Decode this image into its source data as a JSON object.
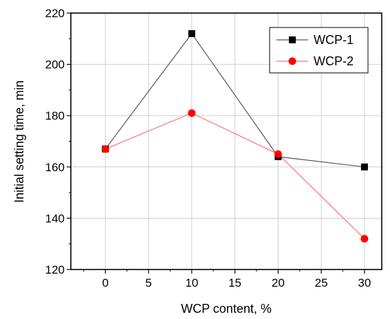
{
  "chart_data": {
    "type": "line",
    "title": "",
    "xlabel": "WCP content, %",
    "ylabel": "Initial setting time, min",
    "xlim": [
      -4,
      32
    ],
    "ylim": [
      120,
      220
    ],
    "xticks": [
      0,
      5,
      10,
      15,
      20,
      25,
      30
    ],
    "yticks": [
      120,
      140,
      160,
      180,
      200,
      220
    ],
    "grid": true,
    "legend_position": "top-right",
    "series": [
      {
        "name": "WCP-1",
        "color": "#000000",
        "marker": "square",
        "line_color": "#555555",
        "x": [
          0,
          10,
          20,
          30
        ],
        "y": [
          167,
          212,
          164,
          160
        ]
      },
      {
        "name": "WCP-2",
        "color": "#ff0000",
        "marker": "circle",
        "line_color": "#ff7070",
        "x": [
          0,
          10,
          20,
          30
        ],
        "y": [
          167,
          181,
          165,
          132
        ]
      }
    ]
  }
}
